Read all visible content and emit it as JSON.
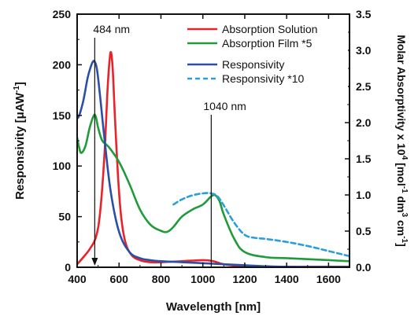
{
  "chart_data": {
    "type": "line",
    "xlabel": "Wavelength [nm]",
    "ylabel_left": "Responsivity [μAW",
    "ylabel_left_sup": "-1",
    "ylabel_left_end": "]",
    "ylabel_right_parts": [
      "Molar Absorptivity x 10",
      "4",
      " [mol",
      "-1",
      " dm",
      "3",
      " cm",
      "-1",
      "]"
    ],
    "xlim": [
      400,
      1700
    ],
    "ylim_left": [
      0,
      250
    ],
    "ylim_right": [
      0,
      3.5
    ],
    "x_ticks": [
      "400",
      "600",
      "800",
      "1000",
      "1200",
      "1400",
      "1600"
    ],
    "y_left_ticks": [
      "0",
      "50",
      "100",
      "150",
      "200",
      "250"
    ],
    "y_right_ticks": [
      "0.0",
      "0.5",
      "1.0",
      "1.5",
      "2.0",
      "2.5",
      "3.0",
      "3.5"
    ],
    "legend_position": "top-right",
    "annotations": [
      {
        "label": "484 nm",
        "x": 484,
        "arrow": true
      },
      {
        "label": "1040 nm",
        "x": 1040,
        "arrow": false
      }
    ],
    "series": [
      {
        "name": "Absorption Solution",
        "axis": "left",
        "color": "#e8232a",
        "style": "solid",
        "x": [
          400,
          430,
          460,
          490,
          510,
          530,
          545,
          555,
          562,
          570,
          580,
          595,
          610,
          630,
          660,
          700,
          750,
          800,
          900,
          1000,
          1050,
          1100,
          1200,
          1400,
          1600,
          1700
        ],
        "y": [
          3,
          10,
          18,
          30,
          55,
          110,
          175,
          205,
          212,
          195,
          150,
          90,
          50,
          25,
          12,
          7,
          5,
          5,
          6,
          7,
          6,
          3,
          1,
          0.5,
          0.5,
          0.5
        ]
      },
      {
        "name": "Absorption Film *5",
        "axis": "left",
        "color": "#1f9b3a",
        "style": "solid",
        "x": [
          400,
          410,
          420,
          440,
          460,
          480,
          490,
          500,
          520,
          550,
          600,
          650,
          700,
          750,
          800,
          830,
          860,
          900,
          950,
          1000,
          1040,
          1060,
          1080,
          1100,
          1150,
          1200,
          1300,
          1400,
          1500,
          1600,
          1700
        ],
        "y": [
          128,
          118,
          113,
          120,
          138,
          150,
          148,
          138,
          125,
          119,
          104,
          82,
          57,
          42,
          36,
          35,
          40,
          50,
          57,
          62,
          70,
          71,
          65,
          52,
          28,
          15,
          10,
          9,
          8,
          7,
          6
        ]
      },
      {
        "name": "Responsivity",
        "axis": "left",
        "color": "#2b4fa6",
        "style": "solid",
        "x": [
          400,
          410,
          430,
          450,
          465,
          475,
          484,
          495,
          510,
          530,
          560,
          600,
          650,
          700,
          750,
          800,
          900,
          1000,
          1100,
          1200,
          1300,
          1400,
          1700
        ],
        "y": [
          147,
          150,
          165,
          187,
          198,
          203,
          203,
          195,
          168,
          128,
          75,
          35,
          15,
          9,
          7,
          6,
          5,
          4,
          3,
          2,
          1,
          0.5,
          0.3
        ]
      },
      {
        "name": "Responsivity *10",
        "axis": "left",
        "color": "#2a9fd8",
        "style": "dashed",
        "x": [
          860,
          900,
          950,
          1000,
          1040,
          1070,
          1100,
          1150,
          1200,
          1250,
          1300,
          1400,
          1500,
          1600,
          1700
        ],
        "y": [
          62,
          67,
          71,
          73,
          73,
          70,
          61,
          44,
          32,
          29,
          28,
          25,
          21,
          16,
          11
        ]
      }
    ]
  }
}
